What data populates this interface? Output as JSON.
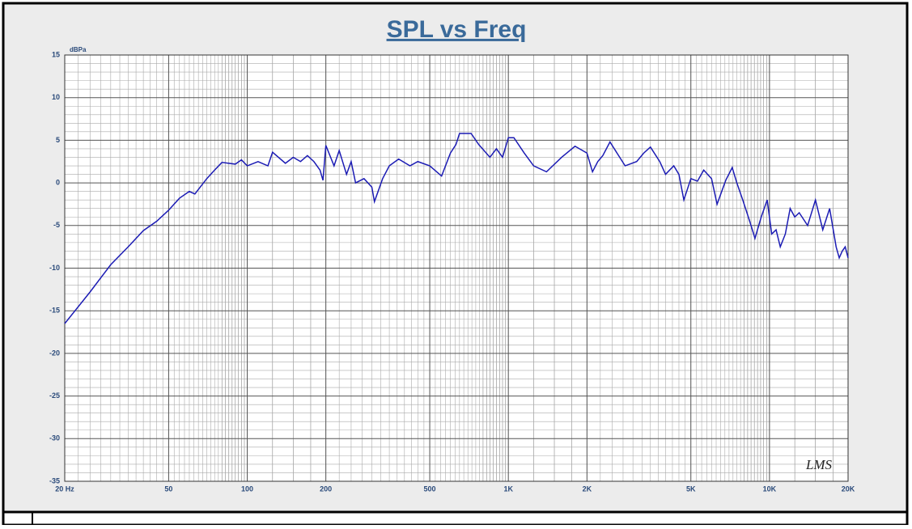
{
  "chart_data": {
    "type": "line",
    "title": "SPL vs Freq",
    "y_unit": "dBPa",
    "annotation": "LMS",
    "xscale": "log",
    "grid": true,
    "xlim": [
      20,
      20000
    ],
    "ylim": [
      -35,
      15
    ],
    "xticks": [
      {
        "value": 20,
        "label": "20 Hz"
      },
      50,
      100,
      200,
      500,
      {
        "value": 1000,
        "label": "1K"
      },
      {
        "value": 2000,
        "label": "2K"
      },
      {
        "value": 5000,
        "label": "5K"
      },
      {
        "value": 10000,
        "label": "10K"
      },
      {
        "value": 20000,
        "label": "20K"
      }
    ],
    "yticks": [
      -35,
      -30,
      -25,
      -20,
      -15,
      -10,
      -5,
      0,
      5,
      10,
      15
    ],
    "x": [
      20,
      25,
      30,
      35,
      40,
      45,
      50,
      55,
      60,
      63,
      70,
      75,
      80,
      90,
      95,
      100,
      110,
      120,
      125,
      140,
      150,
      160,
      170,
      180,
      190,
      195,
      200,
      215,
      225,
      240,
      250,
      260,
      280,
      300,
      307,
      330,
      350,
      380,
      420,
      450,
      500,
      555,
      600,
      630,
      650,
      720,
      770,
      850,
      900,
      950,
      1000,
      1050,
      1150,
      1250,
      1400,
      1600,
      1800,
      2000,
      2100,
      2200,
      2300,
      2450,
      2800,
      3100,
      3300,
      3500,
      3800,
      4000,
      4300,
      4500,
      4700,
      5000,
      5300,
      5600,
      6000,
      6300,
      6800,
      7200,
      7500,
      7900,
      8400,
      8800,
      9300,
      9800,
      10200,
      10600,
      11000,
      11500,
      12000,
      12500,
      13000,
      14000,
      15000,
      16000,
      17000,
      18000,
      18500,
      19000,
      19500,
      20000
    ],
    "series": [
      {
        "name": "SPL",
        "color": "#1c1cb4",
        "values": [
          -16.5,
          -12.8,
          -9.6,
          -7.5,
          -5.6,
          -4.5,
          -3.2,
          -1.8,
          -1.0,
          -1.3,
          0.5,
          1.5,
          2.4,
          2.2,
          2.7,
          2.0,
          2.5,
          2.0,
          3.6,
          2.3,
          3.0,
          2.5,
          3.2,
          2.5,
          1.5,
          0.3,
          4.4,
          2.0,
          3.8,
          1.0,
          2.5,
          0.0,
          0.5,
          -0.5,
          -2.2,
          0.5,
          2.0,
          2.8,
          2.0,
          2.5,
          2.0,
          0.8,
          3.5,
          4.5,
          5.8,
          5.8,
          4.5,
          3.0,
          4.0,
          3.0,
          5.3,
          5.3,
          3.5,
          2.0,
          1.3,
          3.0,
          4.3,
          3.5,
          1.3,
          2.5,
          3.2,
          4.8,
          2.0,
          2.5,
          3.5,
          4.2,
          2.5,
          1.0,
          2.0,
          1.0,
          -2.0,
          0.5,
          0.2,
          1.5,
          0.5,
          -2.5,
          0.3,
          1.8,
          0.0,
          -2.0,
          -4.5,
          -6.5,
          -4.0,
          -2.0,
          -6.0,
          -5.5,
          -7.5,
          -6.0,
          -3.0,
          -4.0,
          -3.5,
          -5.0,
          -2.0,
          -5.5,
          -3.0,
          -7.5,
          -8.8,
          -8.0,
          -7.5,
          -8.8
        ]
      }
    ]
  }
}
